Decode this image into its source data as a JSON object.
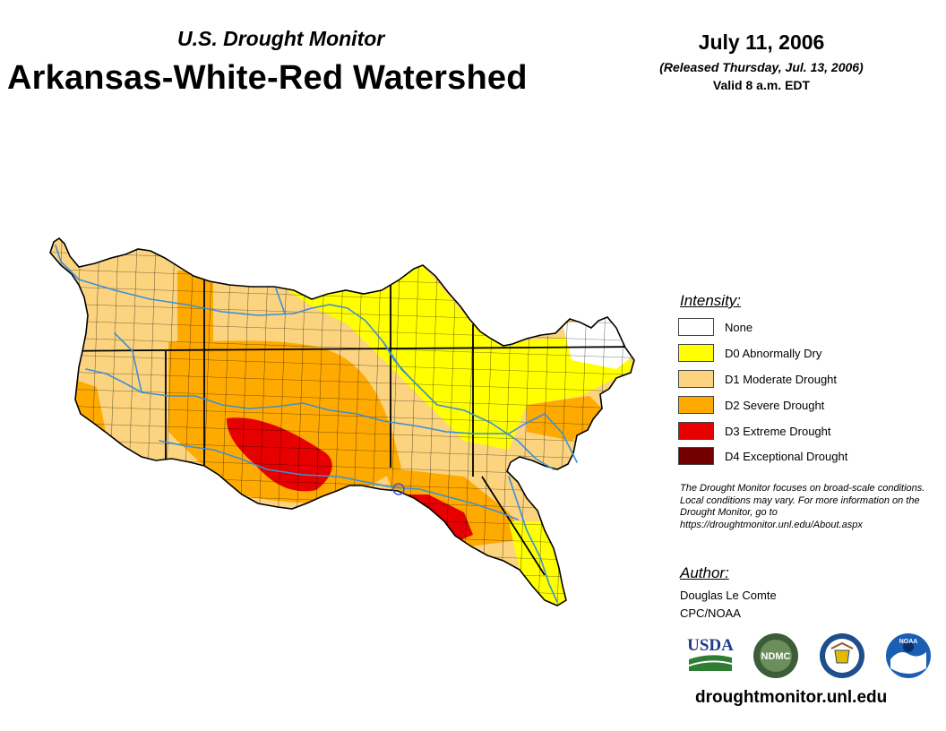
{
  "header": {
    "subtitle": "U.S. Drought Monitor",
    "title": "Arkansas-White-Red Watershed",
    "date": "July 11, 2006",
    "released": "(Released Thursday, Jul. 13, 2006)",
    "valid": "Valid 8 a.m. EDT"
  },
  "legend": {
    "title": "Intensity:",
    "items": [
      {
        "label": "None",
        "color": "#ffffff"
      },
      {
        "label": "D0 Abnormally Dry",
        "color": "#ffff00"
      },
      {
        "label": "D1 Moderate Drought",
        "color": "#fcd37f"
      },
      {
        "label": "D2 Severe Drought",
        "color": "#ffaa00"
      },
      {
        "label": "D3 Extreme Drought",
        "color": "#e60000"
      },
      {
        "label": "D4 Exceptional Drought",
        "color": "#730000"
      }
    ]
  },
  "note": "The Drought Monitor focuses on broad-scale conditions. Local conditions may vary. For more information on the Drought Monitor, go to https://droughtmonitor.unl.edu/About.aspx",
  "author": {
    "title": "Author:",
    "name": "Douglas Le Comte",
    "org": "CPC/NOAA"
  },
  "logos": {
    "usda": "USDA",
    "ndmc": "NDMC",
    "noaa": "NOAA"
  },
  "footer": {
    "url": "droughtmonitor.unl.edu"
  }
}
